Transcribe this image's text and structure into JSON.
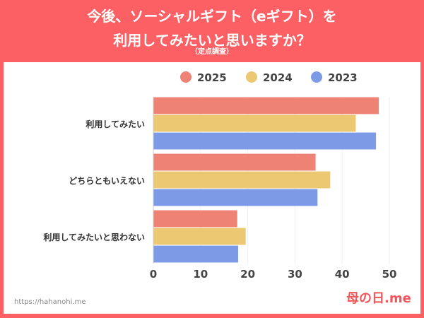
{
  "header": {
    "title_line1": "今後、ソーシャルギフト（eギフト）を",
    "title_line2": "利用してみたいと思いますか？",
    "subtitle": "（定点調査）"
  },
  "footer": {
    "url": "https://hahanohi.me",
    "logo": "母の日.me"
  },
  "chart_data": {
    "type": "bar",
    "orientation": "horizontal",
    "title": "今後、ソーシャルギフト（eギフト）を利用してみたいと思いますか？（定点調査）",
    "categories": [
      "利用してみたい",
      "どちらともいえない",
      "利用してみたいと思わない"
    ],
    "series": [
      {
        "name": "2025",
        "color": "#ee8275",
        "values": [
          47.7,
          34.3,
          17.7
        ]
      },
      {
        "name": "2024",
        "color": "#ecc873",
        "values": [
          42.8,
          37.4,
          19.5
        ]
      },
      {
        "name": "2023",
        "color": "#7c9ae6",
        "values": [
          47.1,
          34.7,
          17.9
        ]
      }
    ],
    "xlim": [
      0,
      50
    ],
    "xticks": [
      0,
      10,
      20,
      30,
      40,
      50
    ],
    "grid": true,
    "legend": "top"
  }
}
